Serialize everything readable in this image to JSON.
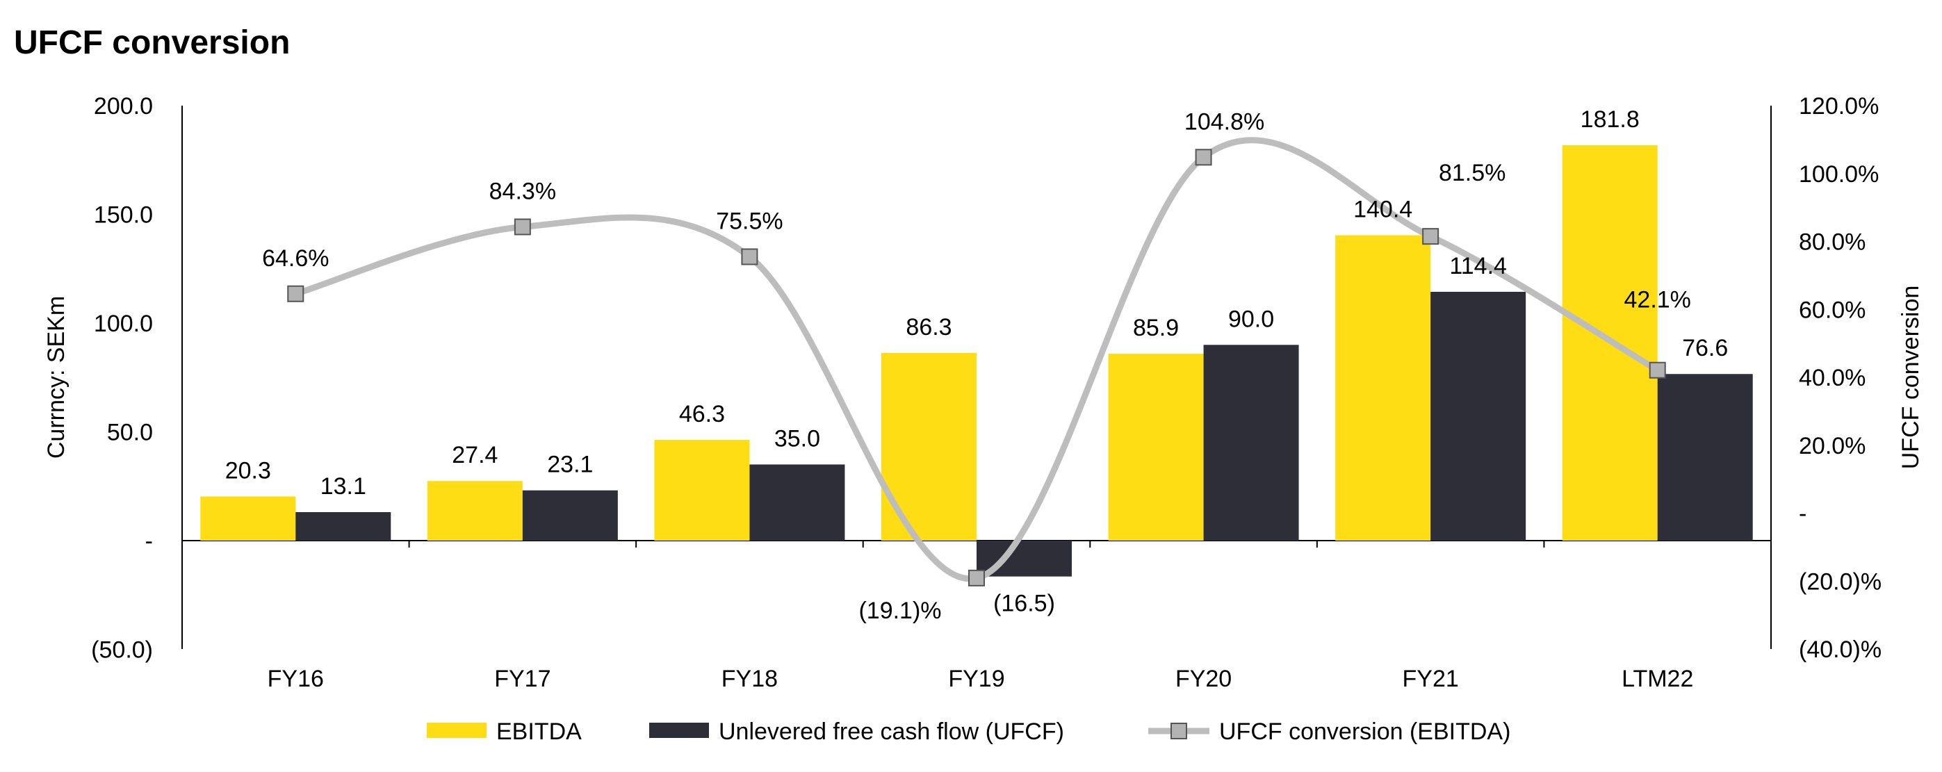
{
  "chart_data": {
    "type": "bar",
    "title": "UFCF conversion",
    "categories": [
      "FY16",
      "FY17",
      "FY18",
      "FY19",
      "FY20",
      "FY21",
      "LTM22"
    ],
    "series": [
      {
        "name": "EBITDA",
        "kind": "bar",
        "axis": "left",
        "color": "#FFDD14",
        "values": [
          20.3,
          27.4,
          46.3,
          86.3,
          85.9,
          140.4,
          181.8
        ],
        "labels": [
          "20.3",
          "27.4",
          "46.3",
          "86.3",
          "85.9",
          "140.4",
          "181.8"
        ]
      },
      {
        "name": "Unlevered free cash flow (UFCF)",
        "kind": "bar",
        "axis": "left",
        "color": "#2D2E38",
        "values": [
          13.1,
          23.1,
          35.0,
          -16.5,
          90.0,
          114.4,
          76.6
        ],
        "labels": [
          "13.1",
          "23.1",
          "35.0",
          "(16.5)",
          "90.0",
          "114.4",
          "76.6"
        ]
      },
      {
        "name": "UFCF conversion (EBITDA)",
        "kind": "line",
        "axis": "right",
        "color": "#BDBDBD",
        "values": [
          64.6,
          84.3,
          75.5,
          -19.1,
          104.8,
          81.5,
          42.1
        ],
        "labels": [
          "64.6%",
          "84.3%",
          "75.5%",
          "(19.1)%",
          "104.8%",
          "81.5%",
          "42.1%"
        ]
      }
    ],
    "ylabel": "Currncy: SEKm",
    "y2label": "UFCF conversion",
    "ylim": [
      -50,
      200
    ],
    "y2lim": [
      -40,
      120
    ],
    "yticks": [
      {
        "v": 200,
        "t": "200.0"
      },
      {
        "v": 150,
        "t": "150.0"
      },
      {
        "v": 100,
        "t": "100.0"
      },
      {
        "v": 50,
        "t": "50.0"
      },
      {
        "v": 0,
        "t": "-"
      },
      {
        "v": -50,
        "t": "(50.0)"
      }
    ],
    "y2ticks": [
      {
        "v": 120,
        "t": "120.0%"
      },
      {
        "v": 100,
        "t": "100.0%"
      },
      {
        "v": 80,
        "t": "80.0%"
      },
      {
        "v": 60,
        "t": "60.0%"
      },
      {
        "v": 40,
        "t": "40.0%"
      },
      {
        "v": 20,
        "t": "20.0%"
      },
      {
        "v": 0,
        "t": "-"
      },
      {
        "v": -20,
        "t": "(20.0)%"
      },
      {
        "v": -40,
        "t": "(40.0)%"
      }
    ],
    "grid": false,
    "legend_position": "bottom"
  }
}
